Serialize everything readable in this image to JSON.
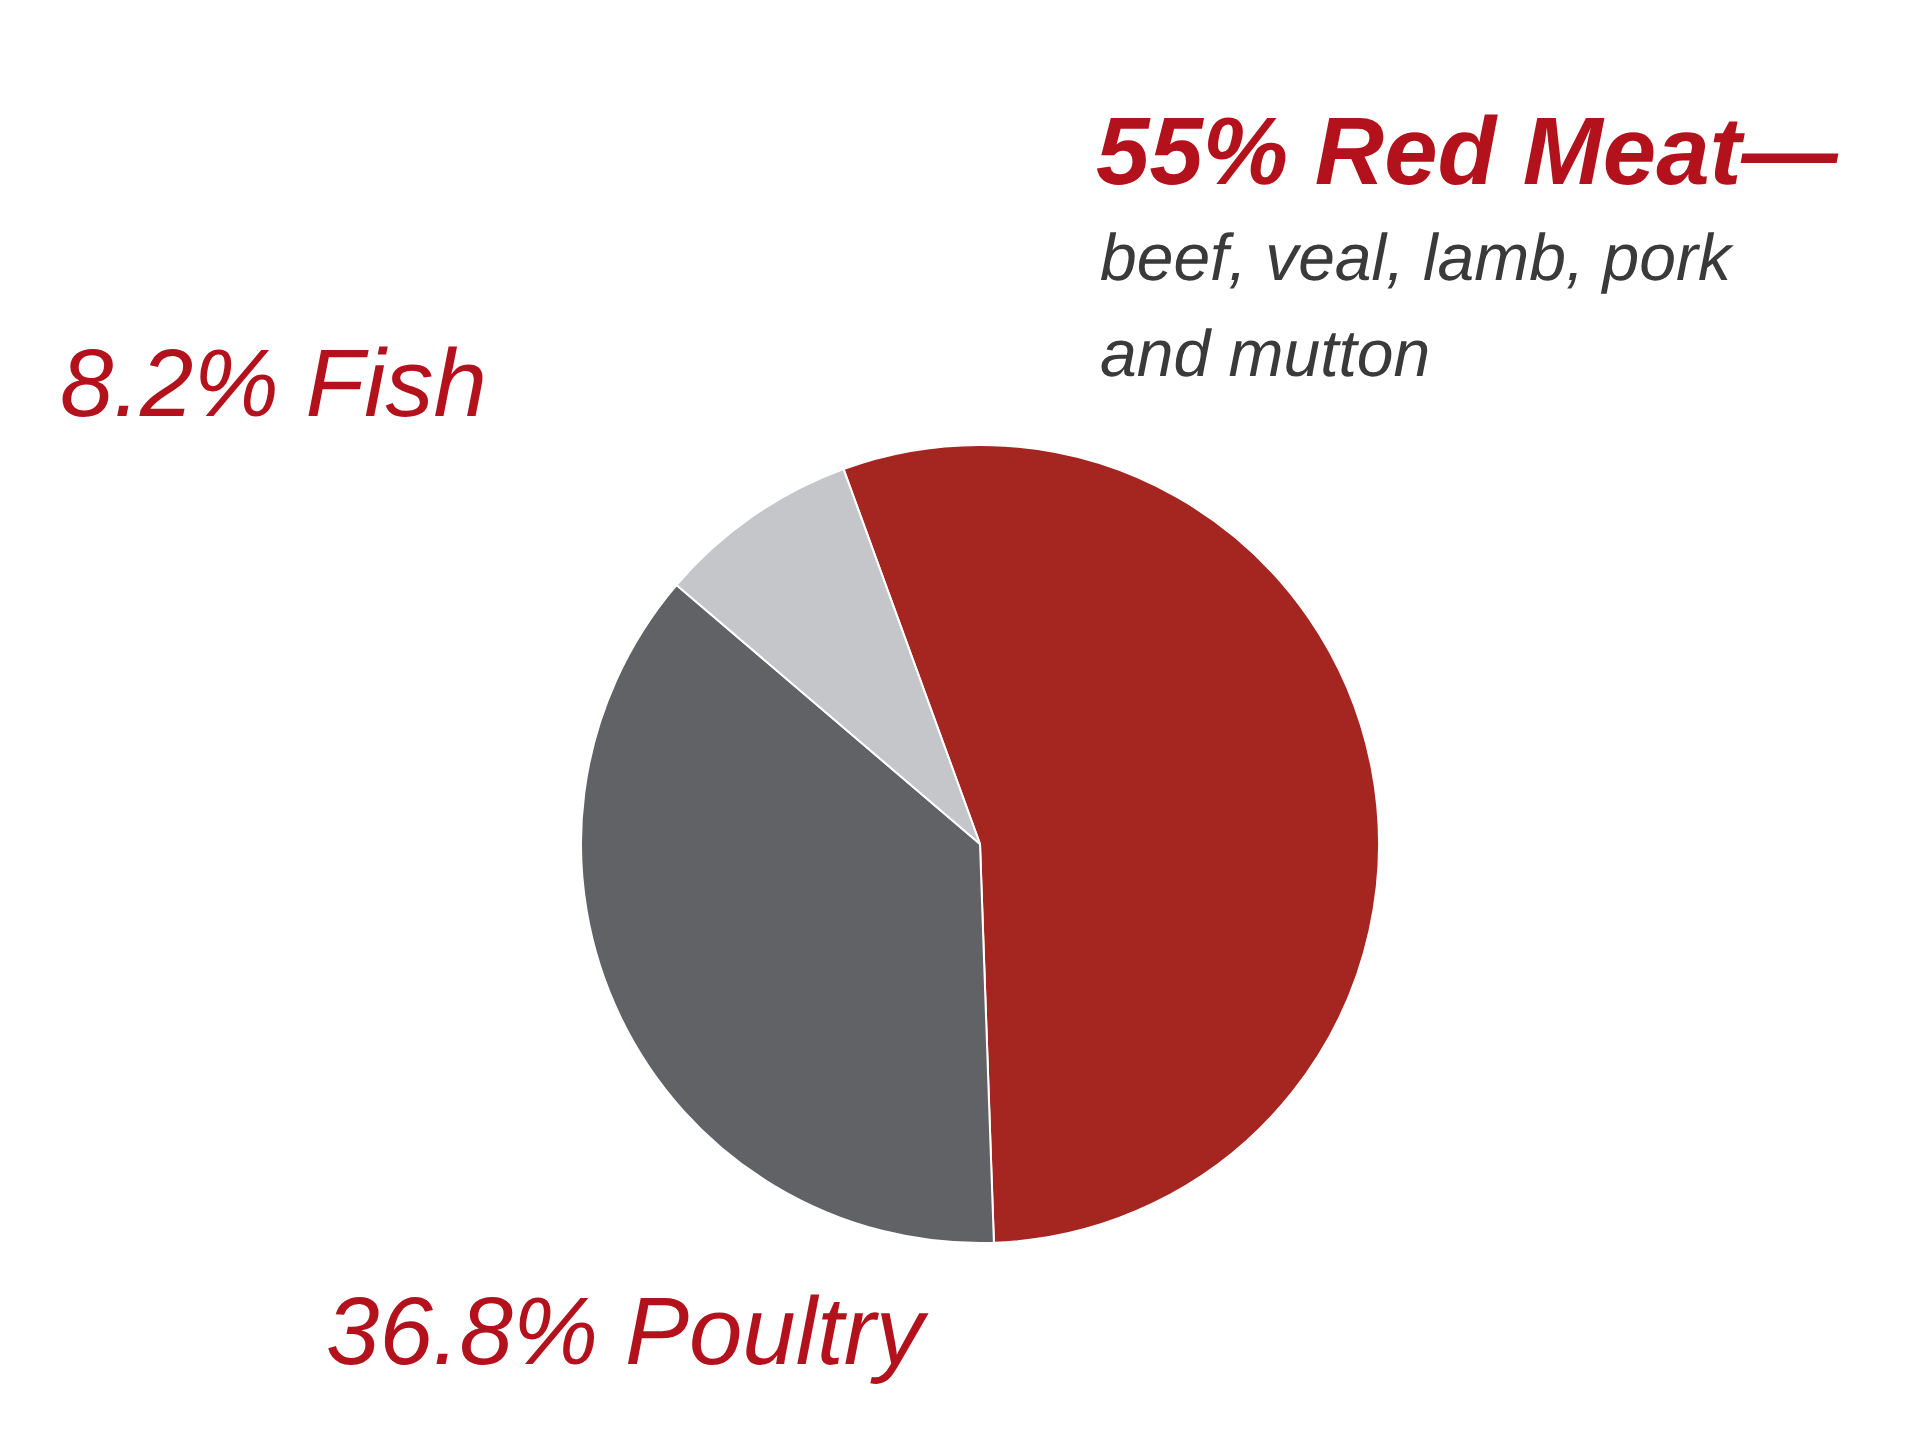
{
  "chart_data": {
    "type": "pie",
    "categories": [
      "Red Meat—",
      "Poultry",
      "Fish"
    ],
    "values": [
      55,
      36.8,
      8.2
    ],
    "colors": [
      "#a52520",
      "#616265",
      "#c4c6ca"
    ],
    "value_labels": [
      "55%",
      "36.8%",
      "8.2%"
    ],
    "annotations": [
      "beef, veal, lamb, pork and mutton"
    ],
    "legend": false
  }
}
